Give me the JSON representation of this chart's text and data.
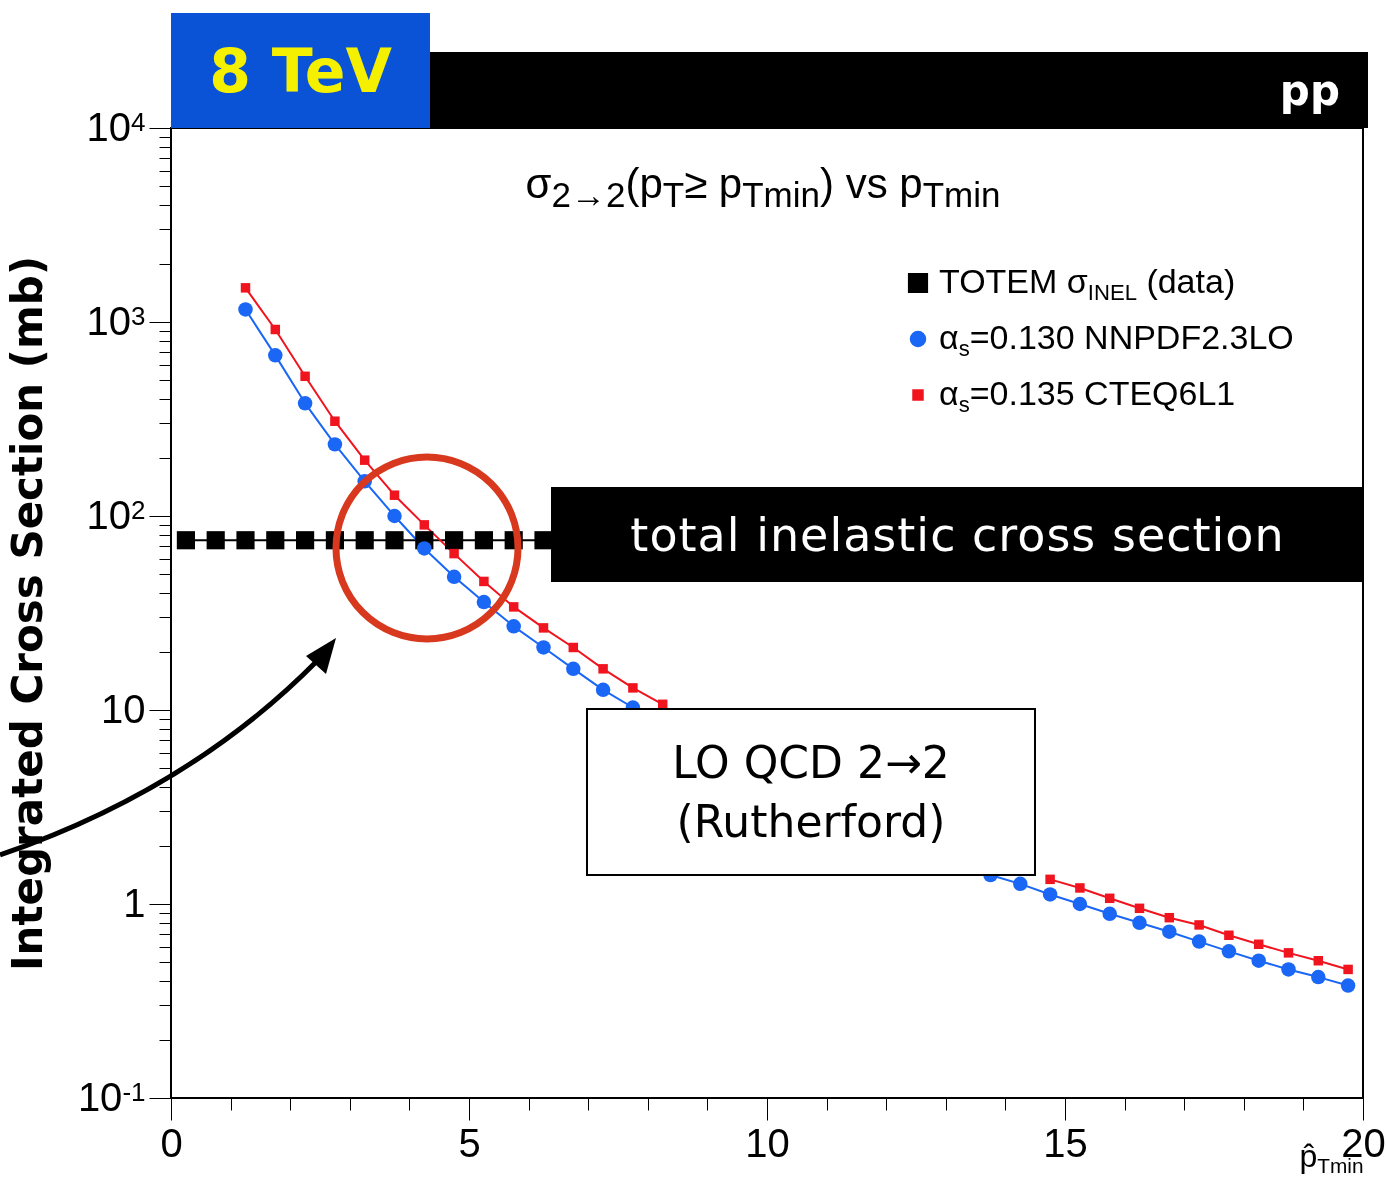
{
  "chart_data": {
    "type": "line",
    "title": "σ$_{2→2}$(p$_{T}$≥ p$_{Tmin}$) vs p$_{Tmin}$",
    "xlabel": "p̂$_{Tmin}$",
    "ylabel": "Integrated Cross Section (mb)",
    "annotations": [
      "8 TeV",
      "pp",
      "total inelastic cross section",
      "LO QCD 2→2 (Rutherford)"
    ],
    "x": [
      1.25,
      1.75,
      2.25,
      2.75,
      3.25,
      3.75,
      4.25,
      4.75,
      5.25,
      5.75,
      6.25,
      6.75,
      7.25,
      7.75,
      8.25,
      8.75,
      9.25,
      9.75,
      10.25,
      10.75,
      11.25,
      11.75,
      12.25,
      12.75,
      13.25,
      13.75,
      14.25,
      14.75,
      15.25,
      15.75,
      16.25,
      16.75,
      17.25,
      17.75,
      18.25,
      18.75,
      19.25,
      19.75
    ],
    "series": [
      {
        "name": "TOTEM σ$_{INEL}$   (data)",
        "color": "#000000",
        "marker": "square",
        "x": [
          0.25,
          0.75,
          1.25,
          1.75,
          2.25,
          2.75,
          3.25,
          3.75,
          4.25,
          4.75,
          5.25,
          5.75,
          6.25
        ],
        "values": [
          75,
          75,
          75,
          75,
          75,
          75,
          75,
          75,
          75,
          75,
          75,
          75,
          75
        ]
      },
      {
        "name": "α$_{s}$=0.130 NNPDF2.3LO",
        "color": "#1a66f5",
        "marker": "circle",
        "values": [
          1160,
          673,
          381,
          234,
          151,
          100,
          68,
          48.6,
          36,
          27,
          21,
          16.3,
          12.7,
          10.3,
          null,
          null,
          null,
          null,
          null,
          null,
          null,
          null,
          null,
          null,
          null,
          1.41,
          1.27,
          1.12,
          1.0,
          0.89,
          0.8,
          0.72,
          0.64,
          0.57,
          0.51,
          0.46,
          0.42,
          0.38
        ]
      },
      {
        "name": "α$_{s}$=0.135 CTEQ6L1",
        "color": "#f0141e",
        "marker": "square",
        "values": [
          1500,
          915,
          525,
          308,
          194,
          128,
          90,
          64,
          46,
          34,
          26.5,
          21,
          16.3,
          13,
          10.7,
          null,
          null,
          null,
          null,
          null,
          null,
          null,
          null,
          null,
          null,
          null,
          null,
          1.34,
          1.21,
          1.07,
          0.95,
          0.85,
          0.78,
          0.69,
          0.62,
          0.56,
          0.51,
          0.46
        ]
      }
    ],
    "xlim": [
      0,
      20
    ],
    "xticks": [
      0,
      {
        "value": 1,
        "label": null
      },
      {
        "value": 2,
        "label": null
      },
      {
        "value": 3,
        "label": null
      },
      {
        "value": 4,
        "label": null
      },
      5,
      {
        "value": 6,
        "label": null
      },
      {
        "value": 7,
        "label": null
      },
      {
        "value": 8,
        "label": null
      },
      {
        "value": 9,
        "label": null
      },
      10,
      {
        "value": 11,
        "label": null
      },
      {
        "value": 12,
        "label": null
      },
      {
        "value": 13,
        "label": null
      },
      {
        "value": 14,
        "label": null
      },
      15,
      {
        "value": 16,
        "label": null
      },
      {
        "value": 17,
        "label": null
      },
      {
        "value": 18,
        "label": null
      },
      {
        "value": 19,
        "label": null
      },
      20
    ],
    "ylim": [
      0.1,
      10000
    ],
    "yticks": [
      {
        "value": 0.1,
        "label": "10$^{-1}$"
      },
      {
        "value": 0.2,
        "label": null
      },
      {
        "value": 0.3,
        "label": null
      },
      {
        "value": 0.4,
        "label": null
      },
      {
        "value": 0.5,
        "label": null
      },
      {
        "value": 0.6,
        "label": null
      },
      {
        "value": 0.7,
        "label": null
      },
      {
        "value": 0.8,
        "label": null
      },
      {
        "value": 0.9,
        "label": null
      },
      1,
      {
        "value": 2,
        "label": null
      },
      {
        "value": 3,
        "label": null
      },
      {
        "value": 4,
        "label": null
      },
      {
        "value": 5,
        "label": null
      },
      {
        "value": 6,
        "label": null
      },
      {
        "value": 7,
        "label": null
      },
      {
        "value": 8,
        "label": null
      },
      {
        "value": 9,
        "label": null
      },
      10,
      {
        "value": 20,
        "label": null
      },
      {
        "value": 30,
        "label": null
      },
      {
        "value": 40,
        "label": null
      },
      {
        "value": 50,
        "label": null
      },
      {
        "value": 60,
        "label": null
      },
      {
        "value": 70,
        "label": null
      },
      {
        "value": 80,
        "label": null
      },
      {
        "value": 90,
        "label": null
      },
      {
        "value": 100,
        "label": "10$^{2}$"
      },
      {
        "value": 200,
        "label": null
      },
      {
        "value": 300,
        "label": null
      },
      {
        "value": 400,
        "label": null
      },
      {
        "value": 500,
        "label": null
      },
      {
        "value": 600,
        "label": null
      },
      {
        "value": 700,
        "label": null
      },
      {
        "value": 800,
        "label": null
      },
      {
        "value": 900,
        "label": null
      },
      {
        "value": 1000,
        "label": "10$^{3}$"
      },
      {
        "value": 2000,
        "label": null
      },
      {
        "value": 3000,
        "label": null
      },
      {
        "value": 4000,
        "label": null
      },
      {
        "value": 5000,
        "label": null
      },
      {
        "value": 6000,
        "label": null
      },
      {
        "value": 7000,
        "label": null
      },
      {
        "value": 8000,
        "label": null
      },
      {
        "value": 9000,
        "label": null
      },
      {
        "value": 10000,
        "label": "10$^{4}$"
      }
    ],
    "log": true,
    "grid": false,
    "legend": "top right"
  }
}
